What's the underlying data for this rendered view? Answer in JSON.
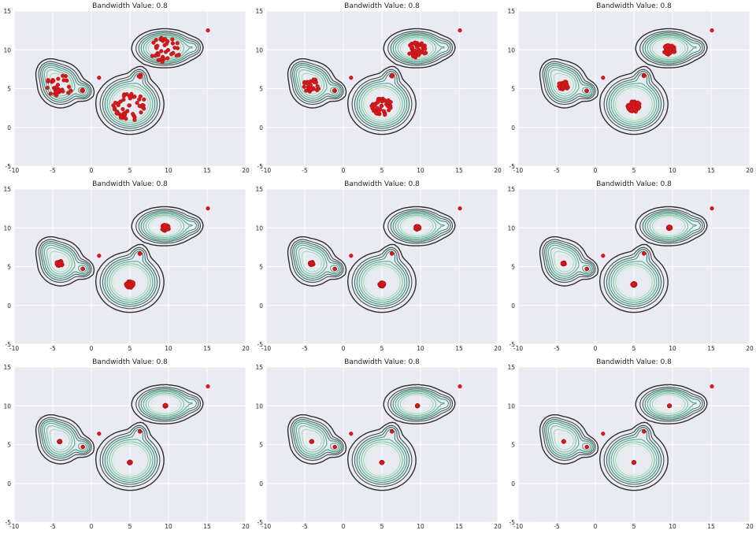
{
  "figure": {
    "rows": 3,
    "cols": 3,
    "background": "#eaeaf2",
    "grid_color": "#ffffff",
    "point_color": "#d7191c",
    "contour_colors": [
      "#2e2e2e",
      "#404a48",
      "#3f6f61",
      "#3f9277",
      "#53ad8a",
      "#79c3a1",
      "#a8d8bd",
      "#d6eedf"
    ]
  },
  "chart_data": [
    {
      "panel": 1,
      "type": "scatter+kde-contour",
      "title": "Bandwidth Value: 0.8",
      "xlim": [
        -10,
        20
      ],
      "ylim": [
        -5,
        15
      ],
      "xticks": [
        -10,
        -5,
        0,
        5,
        10,
        15,
        20
      ],
      "yticks": [
        -5,
        0,
        5,
        10,
        15
      ],
      "grid": true,
      "step": 0,
      "points": []
    },
    {
      "panel": 2,
      "type": "scatter+kde-contour",
      "title": "Bandwidth Value: 0.8",
      "xlim": [
        -10,
        20
      ],
      "ylim": [
        -5,
        15
      ],
      "xticks": [
        -10,
        -5,
        0,
        5,
        10,
        15,
        20
      ],
      "yticks": [
        -5,
        0,
        5,
        10,
        15
      ],
      "grid": true,
      "step": 1,
      "points": []
    },
    {
      "panel": 3,
      "type": "scatter+kde-contour",
      "title": "Bandwidth Value: 0.8",
      "xlim": [
        -10,
        20
      ],
      "ylim": [
        -5,
        15
      ],
      "xticks": [
        -10,
        -5,
        0,
        5,
        10,
        15,
        20
      ],
      "yticks": [
        -5,
        0,
        5,
        10,
        15
      ],
      "grid": true,
      "step": 2,
      "points": []
    },
    {
      "panel": 4,
      "type": "scatter+kde-contour",
      "title": "Bandwidth Value: 0.8",
      "xlim": [
        -10,
        20
      ],
      "ylim": [
        -5,
        15
      ],
      "xticks": [
        -10,
        -5,
        0,
        5,
        10,
        15,
        20
      ],
      "yticks": [
        -5,
        0,
        5,
        10,
        15
      ],
      "grid": true,
      "step": 3,
      "points": []
    },
    {
      "panel": 5,
      "type": "scatter+kde-contour",
      "title": "Bandwidth Value: 0.8",
      "xlim": [
        -10,
        20
      ],
      "ylim": [
        -5,
        15
      ],
      "xticks": [
        -10,
        -5,
        0,
        5,
        10,
        15,
        20
      ],
      "yticks": [
        -5,
        0,
        5,
        10,
        15
      ],
      "grid": true,
      "step": 4,
      "points": []
    },
    {
      "panel": 6,
      "type": "scatter+kde-contour",
      "title": "Bandwidth Value: 0.8",
      "xlim": [
        -10,
        20
      ],
      "ylim": [
        -5,
        15
      ],
      "xticks": [
        -10,
        -5,
        0,
        5,
        10,
        15,
        20
      ],
      "yticks": [
        -5,
        0,
        5,
        10,
        15
      ],
      "grid": true,
      "step": 5,
      "points": []
    },
    {
      "panel": 7,
      "type": "scatter+kde-contour",
      "title": "Bandwidth Value: 0.8",
      "xlim": [
        -10,
        20
      ],
      "ylim": [
        -5,
        15
      ],
      "xticks": [
        -10,
        -5,
        0,
        5,
        10,
        15,
        20
      ],
      "yticks": [
        -5,
        0,
        5,
        10,
        15
      ],
      "grid": true,
      "step": 6,
      "points": []
    },
    {
      "panel": 8,
      "type": "scatter+kde-contour",
      "title": "Bandwidth Value: 0.8",
      "xlim": [
        -10,
        20
      ],
      "ylim": [
        -5,
        15
      ],
      "xticks": [
        -10,
        -5,
        0,
        5,
        10,
        15,
        20
      ],
      "yticks": [
        -5,
        0,
        5,
        10,
        15
      ],
      "grid": true,
      "step": 7,
      "points": []
    },
    {
      "panel": 9,
      "type": "scatter+kde-contour",
      "title": "Bandwidth Value: 0.8",
      "xlim": [
        -10,
        20
      ],
      "ylim": [
        -5,
        15
      ],
      "xticks": [
        -10,
        -5,
        0,
        5,
        10,
        15,
        20
      ],
      "yticks": [
        -5,
        0,
        5,
        10,
        15
      ],
      "grid": true,
      "step": 8,
      "points": []
    }
  ],
  "density_components": [
    {
      "cx": -4.0,
      "cy": 5.5,
      "sx": 1.25,
      "sy": 1.25,
      "w": 1.0
    },
    {
      "cx": -5.5,
      "cy": 7.2,
      "sx": 0.8,
      "sy": 0.8,
      "w": 0.35
    },
    {
      "cx": -1.0,
      "cy": 4.7,
      "sx": 0.6,
      "sy": 0.6,
      "w": 0.45
    },
    {
      "cx": 5.0,
      "cy": 3.0,
      "sx": 1.7,
      "sy": 1.5,
      "w": 1.7
    },
    {
      "cx": 6.2,
      "cy": 6.6,
      "sx": 0.6,
      "sy": 0.6,
      "w": 0.3
    },
    {
      "cx": 9.5,
      "cy": 10.2,
      "sx": 1.7,
      "sy": 1.0,
      "w": 1.4
    },
    {
      "cx": 13.3,
      "cy": 10.3,
      "sx": 0.6,
      "sy": 0.6,
      "w": 0.25
    }
  ],
  "contour_levels": [
    0.06,
    0.13,
    0.2,
    0.28,
    0.38,
    0.5,
    0.64,
    0.8
  ],
  "fixed_points": [
    [
      1.0,
      6.4
    ],
    [
      15.1,
      12.5
    ]
  ],
  "clusters": [
    {
      "center": [
        -4.1,
        5.4
      ],
      "count": 30,
      "spread": 1.6
    },
    {
      "center": [
        -1.1,
        4.7
      ],
      "count": 4,
      "spread": 0.3
    },
    {
      "center": [
        5.0,
        2.7
      ],
      "count": 45,
      "spread": 2.0
    },
    {
      "center": [
        6.3,
        6.7
      ],
      "count": 4,
      "spread": 0.3
    },
    {
      "center": [
        9.6,
        10.0
      ],
      "count": 38,
      "spread": 1.8
    }
  ]
}
